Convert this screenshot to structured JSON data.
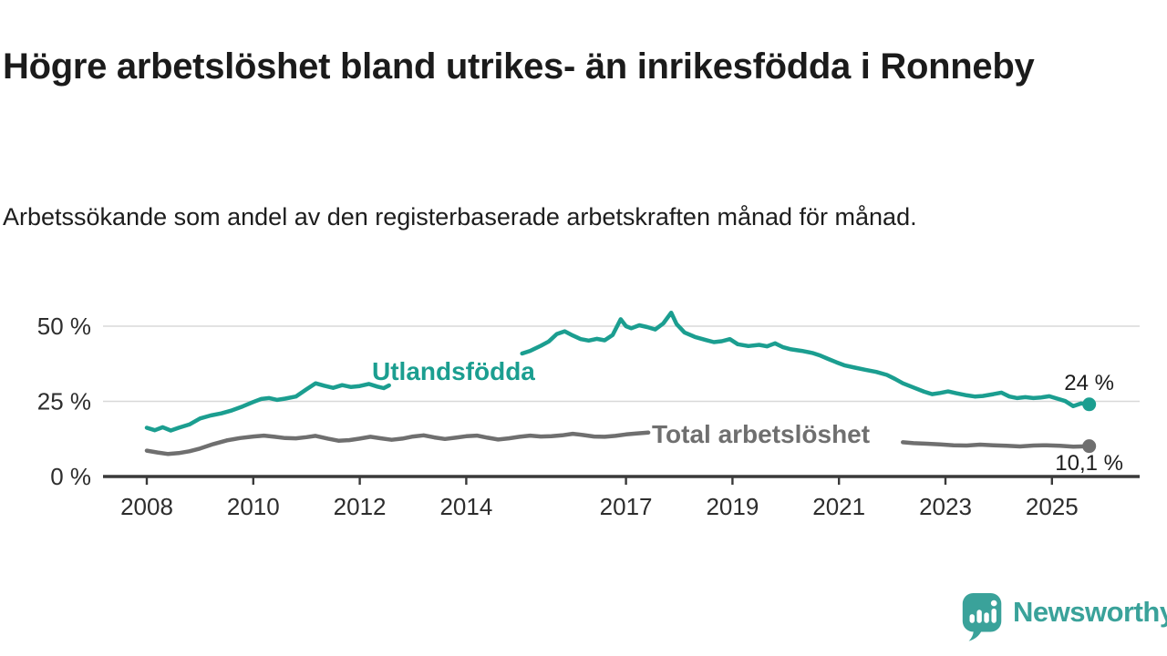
{
  "header": {
    "title": "Högre arbetslöshet bland utrikes- än inrikesfödda i Ronneby",
    "subtitle": "Arbetssökande som andel av den registerbaserade arbetskraften månad för månad."
  },
  "colors": {
    "teal_line": "#1b9e90",
    "gray_line": "#6f6f6f",
    "logo_teal": "#3aa29a",
    "gridline": "#d8d8d8",
    "axis_line": "#3a3a3a",
    "axis_text": "#2d2d2d",
    "end_label_text": "#1c1c1c"
  },
  "chart_data": {
    "type": "line",
    "title": "Högre arbetslöshet bland utrikes- än inrikesfödda i Ronneby",
    "subtitle": "Arbetssökande som andel av den registerbaserade arbetskraften månad för månad.",
    "unit": "%",
    "xlabel": "",
    "ylabel": "",
    "xlim": [
      2007.2,
      2026.6
    ],
    "ylim": [
      0,
      57
    ],
    "grid": "horizontal-only",
    "x_ticks": [
      2008,
      2010,
      2012,
      2014,
      2017,
      2019,
      2021,
      2023,
      2025
    ],
    "y_ticks": [
      {
        "value": 0,
        "label": "0 %"
      },
      {
        "value": 25,
        "label": "25 %"
      },
      {
        "value": 50,
        "label": "50 %"
      }
    ],
    "gridline_values": [
      25,
      50
    ],
    "series": [
      {
        "name": "Utlandsfödda",
        "color": "#1b9e90",
        "inline_label": "Utlandsfödda",
        "end_label": "24 %",
        "end_value": 24,
        "segments": [
          [
            [
              2008.0,
              16.2
            ],
            [
              2008.15,
              15.4
            ],
            [
              2008.3,
              16.4
            ],
            [
              2008.45,
              15.3
            ],
            [
              2008.6,
              16.2
            ],
            [
              2008.8,
              17.3
            ],
            [
              2009.0,
              19.3
            ],
            [
              2009.2,
              20.3
            ],
            [
              2009.4,
              21.0
            ],
            [
              2009.6,
              22.0
            ],
            [
              2009.8,
              23.3
            ],
            [
              2010.0,
              24.8
            ],
            [
              2010.15,
              25.8
            ],
            [
              2010.3,
              26.1
            ],
            [
              2010.45,
              25.5
            ],
            [
              2010.6,
              25.9
            ],
            [
              2010.8,
              26.6
            ],
            [
              2011.0,
              29.0
            ],
            [
              2011.17,
              31.0
            ],
            [
              2011.33,
              30.2
            ],
            [
              2011.5,
              29.5
            ],
            [
              2011.67,
              30.4
            ],
            [
              2011.83,
              29.8
            ],
            [
              2012.0,
              30.1
            ],
            [
              2012.17,
              30.8
            ],
            [
              2012.33,
              29.9
            ],
            [
              2012.45,
              29.4
            ],
            [
              2012.55,
              30.3
            ]
          ],
          [
            [
              2015.05,
              40.9
            ],
            [
              2015.2,
              41.8
            ],
            [
              2015.4,
              43.5
            ],
            [
              2015.55,
              44.9
            ],
            [
              2015.7,
              47.4
            ],
            [
              2015.85,
              48.3
            ],
            [
              2016.0,
              46.9
            ],
            [
              2016.15,
              45.7
            ],
            [
              2016.3,
              45.2
            ],
            [
              2016.45,
              45.8
            ],
            [
              2016.6,
              45.3
            ],
            [
              2016.75,
              47.1
            ],
            [
              2016.9,
              52.3
            ],
            [
              2017.0,
              50.0
            ],
            [
              2017.1,
              49.3
            ],
            [
              2017.25,
              50.3
            ],
            [
              2017.4,
              49.7
            ],
            [
              2017.55,
              48.9
            ],
            [
              2017.7,
              50.9
            ],
            [
              2017.85,
              54.5
            ],
            [
              2017.95,
              50.7
            ],
            [
              2018.1,
              47.9
            ],
            [
              2018.3,
              46.4
            ],
            [
              2018.5,
              45.4
            ],
            [
              2018.65,
              44.7
            ],
            [
              2018.8,
              45.0
            ],
            [
              2018.95,
              45.7
            ],
            [
              2019.1,
              44.0
            ],
            [
              2019.3,
              43.4
            ],
            [
              2019.5,
              43.8
            ],
            [
              2019.65,
              43.3
            ],
            [
              2019.8,
              44.3
            ],
            [
              2019.95,
              43.0
            ],
            [
              2020.1,
              42.3
            ],
            [
              2020.3,
              41.8
            ],
            [
              2020.5,
              41.1
            ],
            [
              2020.65,
              40.2
            ],
            [
              2020.8,
              39.1
            ],
            [
              2020.95,
              38.0
            ],
            [
              2021.1,
              37.0
            ],
            [
              2021.3,
              36.2
            ],
            [
              2021.5,
              35.5
            ],
            [
              2021.7,
              34.8
            ],
            [
              2021.9,
              33.8
            ],
            [
              2022.05,
              32.5
            ],
            [
              2022.2,
              31.0
            ],
            [
              2022.4,
              29.6
            ],
            [
              2022.6,
              28.2
            ],
            [
              2022.75,
              27.4
            ],
            [
              2022.9,
              27.8
            ],
            [
              2023.05,
              28.3
            ],
            [
              2023.2,
              27.7
            ],
            [
              2023.4,
              27.0
            ],
            [
              2023.55,
              26.6
            ],
            [
              2023.7,
              26.8
            ],
            [
              2023.9,
              27.4
            ],
            [
              2024.05,
              27.9
            ],
            [
              2024.2,
              26.6
            ],
            [
              2024.35,
              26.1
            ],
            [
              2024.5,
              26.4
            ],
            [
              2024.65,
              26.1
            ],
            [
              2024.8,
              26.3
            ],
            [
              2024.95,
              26.7
            ],
            [
              2025.1,
              25.9
            ],
            [
              2025.25,
              25.1
            ],
            [
              2025.4,
              23.4
            ],
            [
              2025.55,
              24.3
            ],
            [
              2025.7,
              24.0
            ]
          ]
        ]
      },
      {
        "name": "Total arbetslöshet",
        "color": "#6f6f6f",
        "inline_label": "Total arbetslöshet",
        "end_label": "10,1 %",
        "end_value": 10.1,
        "segments": [
          [
            [
              2008.0,
              8.6
            ],
            [
              2008.2,
              8.0
            ],
            [
              2008.4,
              7.5
            ],
            [
              2008.6,
              7.8
            ],
            [
              2008.8,
              8.4
            ],
            [
              2009.0,
              9.3
            ],
            [
              2009.25,
              10.8
            ],
            [
              2009.5,
              12.0
            ],
            [
              2009.75,
              12.8
            ],
            [
              2010.0,
              13.3
            ],
            [
              2010.2,
              13.6
            ],
            [
              2010.4,
              13.2
            ],
            [
              2010.6,
              12.8
            ],
            [
              2010.8,
              12.7
            ],
            [
              2011.0,
              13.1
            ],
            [
              2011.17,
              13.5
            ],
            [
              2011.4,
              12.6
            ],
            [
              2011.6,
              11.9
            ],
            [
              2011.8,
              12.1
            ],
            [
              2012.0,
              12.6
            ],
            [
              2012.2,
              13.2
            ],
            [
              2012.4,
              12.7
            ],
            [
              2012.6,
              12.2
            ],
            [
              2012.8,
              12.6
            ],
            [
              2013.0,
              13.3
            ],
            [
              2013.2,
              13.7
            ],
            [
              2013.4,
              13.0
            ],
            [
              2013.6,
              12.5
            ],
            [
              2013.8,
              12.9
            ],
            [
              2014.0,
              13.4
            ],
            [
              2014.2,
              13.6
            ],
            [
              2014.4,
              12.9
            ],
            [
              2014.6,
              12.3
            ],
            [
              2014.8,
              12.7
            ],
            [
              2015.0,
              13.2
            ],
            [
              2015.2,
              13.6
            ],
            [
              2015.4,
              13.3
            ],
            [
              2015.6,
              13.4
            ],
            [
              2015.8,
              13.7
            ],
            [
              2016.0,
              14.2
            ],
            [
              2016.2,
              13.8
            ],
            [
              2016.4,
              13.3
            ],
            [
              2016.6,
              13.2
            ],
            [
              2016.8,
              13.5
            ],
            [
              2017.0,
              14.0
            ],
            [
              2017.2,
              14.3
            ],
            [
              2017.42,
              14.6
            ]
          ],
          [
            [
              2022.2,
              11.4
            ],
            [
              2022.4,
              11.1
            ],
            [
              2022.65,
              10.9
            ],
            [
              2022.9,
              10.7
            ],
            [
              2023.15,
              10.4
            ],
            [
              2023.4,
              10.3
            ],
            [
              2023.65,
              10.6
            ],
            [
              2023.9,
              10.4
            ],
            [
              2024.15,
              10.2
            ],
            [
              2024.4,
              10.0
            ],
            [
              2024.65,
              10.3
            ],
            [
              2024.9,
              10.4
            ],
            [
              2025.15,
              10.2
            ],
            [
              2025.4,
              9.9
            ],
            [
              2025.7,
              10.1
            ]
          ]
        ]
      }
    ],
    "legend_position": "inline-on-chart"
  },
  "footer": {
    "brand": "Newsworthy",
    "logo_icon": "speech-bubble-bar-chart-icon"
  }
}
